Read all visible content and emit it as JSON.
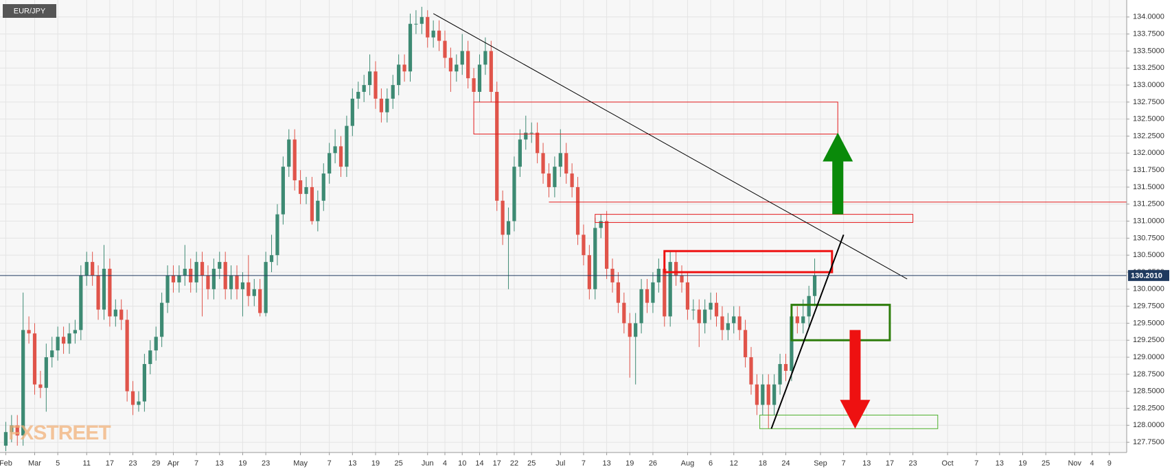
{
  "chart_data": {
    "type": "candlestick",
    "title": "EUR/JPY",
    "watermark": "FXSTREET",
    "up_color": "#3d8a73",
    "down_color": "#e0544a",
    "grid": true,
    "x": [
      0,
      1,
      2,
      3,
      4,
      5,
      6,
      7,
      8,
      9,
      10,
      11,
      12,
      13,
      14,
      15,
      16,
      17,
      18,
      19,
      20,
      21,
      22,
      23,
      24,
      25,
      26,
      27,
      28,
      29,
      30,
      31,
      32,
      33,
      34,
      35,
      36,
      37,
      38,
      39,
      40,
      41,
      42,
      43,
      44,
      45,
      46,
      47,
      48,
      49,
      50,
      51,
      52,
      53,
      54,
      55,
      56,
      57,
      58,
      59,
      60,
      61,
      62,
      63,
      64,
      65,
      66,
      67,
      68,
      69,
      70,
      71,
      72,
      73,
      74,
      75,
      76,
      77,
      78,
      79,
      80,
      81,
      82,
      83,
      84,
      85,
      86,
      87,
      88,
      89,
      90,
      91,
      92,
      93,
      94,
      95,
      96,
      97,
      98,
      99,
      100,
      101,
      102,
      103,
      104,
      105,
      106,
      107,
      108,
      109,
      110,
      111,
      112,
      113,
      114,
      115,
      116,
      117,
      118,
      119,
      120,
      121,
      122,
      123,
      124,
      125,
      126,
      127,
      128,
      129,
      130,
      131,
      132,
      133,
      134,
      135,
      136,
      137,
      138,
      139,
      140
    ],
    "open": [
      127.7,
      127.9,
      128.0,
      127.85,
      129.4,
      129.35,
      128.6,
      128.55,
      129.0,
      129.1,
      129.3,
      129.2,
      129.35,
      129.4,
      130.2,
      130.4,
      130.2,
      129.7,
      130.3,
      129.6,
      129.7,
      129.55,
      128.5,
      128.3,
      128.35,
      128.9,
      129.1,
      129.3,
      129.8,
      130.2,
      130.1,
      130.2,
      130.3,
      130.1,
      130.4,
      130.2,
      130.0,
      130.3,
      130.4,
      130.0,
      130.2,
      130.0,
      130.1,
      129.9,
      130.0,
      129.65,
      130.4,
      130.5,
      131.1,
      131.8,
      132.2,
      131.6,
      131.4,
      131.5,
      131.0,
      131.3,
      131.7,
      132.0,
      132.1,
      131.8,
      132.4,
      132.8,
      132.9,
      133.0,
      133.2,
      132.8,
      132.6,
      132.8,
      133.0,
      133.3,
      133.2,
      133.9,
      133.9,
      134.0,
      133.7,
      133.8,
      133.65,
      133.4,
      133.2,
      133.3,
      133.5,
      133.1,
      132.9,
      133.3,
      133.5,
      132.9,
      131.3,
      130.8,
      131.0,
      131.8,
      132.2,
      132.3,
      132.3,
      132.0,
      131.7,
      131.5,
      131.8,
      132.0,
      131.7,
      131.5,
      130.8,
      130.5,
      130.0,
      130.9,
      131.0,
      130.3,
      130.1,
      129.8,
      129.5,
      129.3,
      129.5,
      130.0,
      129.8,
      130.1,
      130.3,
      129.6,
      130.4,
      130.2,
      130.1,
      129.7,
      129.7,
      129.5,
      129.7,
      129.8,
      129.6,
      129.4,
      129.5,
      129.6,
      129.4,
      129.0,
      128.6,
      128.3,
      128.6,
      128.3,
      128.6,
      128.9,
      128.8,
      129.6,
      129.5,
      129.6,
      129.9
    ],
    "high": [
      128.05,
      128.15,
      128.15,
      129.95,
      129.6,
      129.5,
      128.8,
      129.2,
      129.3,
      129.45,
      129.45,
      129.5,
      129.55,
      130.35,
      130.55,
      130.55,
      130.35,
      130.65,
      130.45,
      129.85,
      129.85,
      129.7,
      128.65,
      128.5,
      129.05,
      129.25,
      129.45,
      129.95,
      130.35,
      130.35,
      130.35,
      130.65,
      130.45,
      130.55,
      130.55,
      130.35,
      130.45,
      130.55,
      130.55,
      130.35,
      130.35,
      130.25,
      130.5,
      130.15,
      130.15,
      130.55,
      130.8,
      131.25,
      131.95,
      132.35,
      132.35,
      131.75,
      131.65,
      131.65,
      131.45,
      131.85,
      132.15,
      132.35,
      132.25,
      132.55,
      132.95,
      133.05,
      133.15,
      133.45,
      133.35,
      132.95,
      132.95,
      133.15,
      133.45,
      133.45,
      134.05,
      134.1,
      134.15,
      134.1,
      133.95,
      133.95,
      133.8,
      133.55,
      133.45,
      133.75,
      133.65,
      133.25,
      133.45,
      133.7,
      133.65,
      133.05,
      131.45,
      131.2,
      131.95,
      132.35,
      132.55,
      132.45,
      132.45,
      132.15,
      131.85,
      131.95,
      132.35,
      132.15,
      131.85,
      131.65,
      130.95,
      130.65,
      131.05,
      131.1,
      131.15,
      130.45,
      130.25,
      129.95,
      129.65,
      129.65,
      130.15,
      130.15,
      130.25,
      130.45,
      130.45,
      130.55,
      130.55,
      130.35,
      130.25,
      129.85,
      129.85,
      129.85,
      129.95,
      129.95,
      129.75,
      129.65,
      129.75,
      129.75,
      129.55,
      129.15,
      128.75,
      128.75,
      128.75,
      128.75,
      129.05,
      129.05,
      129.75,
      129.75,
      129.85,
      130.05,
      130.45
    ],
    "low": [
      127.62,
      127.75,
      127.7,
      127.7,
      129.2,
      128.45,
      128.4,
      128.2,
      128.85,
      128.95,
      129.05,
      129.05,
      129.2,
      129.25,
      130.05,
      130.05,
      129.55,
      129.55,
      129.45,
      129.45,
      129.4,
      128.35,
      128.15,
      128.2,
      128.2,
      128.75,
      128.95,
      129.15,
      129.65,
      129.95,
      129.95,
      130.05,
      129.95,
      129.95,
      129.6,
      129.85,
      129.85,
      130.15,
      129.85,
      129.85,
      129.85,
      129.6,
      129.75,
      129.75,
      129.6,
      129.6,
      130.25,
      130.35,
      130.95,
      131.65,
      131.45,
      131.25,
      131.25,
      130.95,
      130.85,
      131.15,
      131.55,
      131.85,
      131.65,
      131.65,
      132.25,
      132.65,
      132.75,
      132.85,
      132.65,
      132.45,
      132.45,
      132.65,
      132.85,
      133.05,
      133.05,
      133.75,
      133.75,
      133.55,
      133.55,
      133.5,
      133.25,
      132.9,
      133.05,
      133.15,
      132.95,
      132.75,
      132.75,
      133.15,
      132.75,
      131.15,
      130.65,
      130.0,
      130.85,
      131.65,
      132.05,
      132.15,
      131.85,
      131.55,
      131.35,
      131.35,
      131.65,
      131.55,
      131.35,
      130.65,
      130.35,
      129.85,
      129.85,
      130.75,
      130.15,
      129.95,
      129.65,
      129.35,
      128.7,
      128.6,
      129.35,
      129.65,
      129.65,
      129.95,
      129.45,
      129.45,
      130.05,
      129.95,
      129.55,
      129.55,
      129.15,
      129.35,
      129.55,
      129.45,
      129.25,
      129.25,
      129.35,
      129.25,
      128.85,
      128.45,
      128.15,
      128.15,
      127.95,
      128.15,
      128.45,
      128.65,
      128.65,
      129.35,
      129.35,
      129.45,
      129.75
    ],
    "close": [
      127.9,
      128.0,
      127.85,
      129.4,
      129.35,
      128.6,
      128.55,
      129.0,
      129.1,
      129.3,
      129.2,
      129.35,
      129.4,
      130.2,
      130.4,
      130.2,
      129.7,
      130.3,
      129.6,
      129.7,
      129.55,
      128.5,
      128.3,
      128.35,
      128.9,
      129.1,
      129.3,
      129.8,
      130.2,
      130.1,
      130.2,
      130.3,
      130.1,
      130.4,
      130.2,
      130.0,
      130.3,
      130.4,
      130.0,
      130.2,
      130.0,
      130.1,
      129.9,
      130.0,
      129.65,
      130.4,
      130.5,
      131.1,
      131.8,
      132.2,
      131.6,
      131.4,
      131.5,
      131.0,
      131.3,
      131.7,
      132.0,
      132.1,
      131.8,
      132.4,
      132.8,
      132.9,
      133.0,
      133.2,
      132.8,
      132.6,
      132.8,
      133.0,
      133.3,
      133.2,
      133.9,
      133.9,
      134.0,
      133.7,
      133.8,
      133.65,
      133.4,
      133.2,
      133.3,
      133.5,
      133.1,
      132.9,
      133.3,
      133.5,
      132.9,
      131.3,
      130.8,
      131.0,
      131.8,
      132.2,
      132.3,
      132.3,
      132.0,
      131.7,
      131.5,
      131.8,
      132.0,
      131.7,
      131.5,
      130.8,
      130.5,
      130.0,
      130.9,
      131.0,
      130.3,
      130.1,
      129.8,
      129.5,
      129.3,
      129.5,
      130.0,
      129.8,
      130.1,
      130.3,
      129.6,
      130.4,
      130.2,
      130.1,
      129.7,
      129.7,
      129.5,
      129.7,
      129.8,
      129.6,
      129.4,
      129.5,
      129.6,
      129.4,
      129.0,
      128.6,
      128.3,
      128.6,
      128.3,
      128.6,
      128.9,
      128.8,
      129.6,
      129.5,
      129.6,
      129.9,
      130.2
    ],
    "xlim": [
      -1,
      194
    ],
    "ylim": [
      127.6,
      134.25
    ],
    "yticks": [
      {
        "value": 127.75,
        "label": "127.7500"
      },
      {
        "value": 128.0,
        "label": "128.0000"
      },
      {
        "value": 128.25,
        "label": "128.2500"
      },
      {
        "value": 128.5,
        "label": "128.5000"
      },
      {
        "value": 128.75,
        "label": "128.7500"
      },
      {
        "value": 129.0,
        "label": "129.0000"
      },
      {
        "value": 129.25,
        "label": "129.2500"
      },
      {
        "value": 129.5,
        "label": "129.5000"
      },
      {
        "value": 129.75,
        "label": "129.7500"
      },
      {
        "value": 130.0,
        "label": "130.0000"
      },
      {
        "value": 130.25,
        "label": "130.2500"
      },
      {
        "value": 130.5,
        "label": "130.5000"
      },
      {
        "value": 130.75,
        "label": "130.7500"
      },
      {
        "value": 131.0,
        "label": "131.0000"
      },
      {
        "value": 131.25,
        "label": "131.2500"
      },
      {
        "value": 131.5,
        "label": "131.5000"
      },
      {
        "value": 131.75,
        "label": "131.7500"
      },
      {
        "value": 132.0,
        "label": "132.0000"
      },
      {
        "value": 132.25,
        "label": "132.2500"
      },
      {
        "value": 132.5,
        "label": "132.5000"
      },
      {
        "value": 132.75,
        "label": "132.7500"
      },
      {
        "value": 133.0,
        "label": "133.0000"
      },
      {
        "value": 133.25,
        "label": "133.2500"
      },
      {
        "value": 133.5,
        "label": "133.5000"
      },
      {
        "value": 133.75,
        "label": "133.7500"
      },
      {
        "value": 134.0,
        "label": "134.0000"
      }
    ],
    "xticks": [
      {
        "value": 0,
        "label": "Feb"
      },
      {
        "value": 5,
        "label": "Mar"
      },
      {
        "value": 9,
        "label": "5"
      },
      {
        "value": 14,
        "label": "11"
      },
      {
        "value": 18,
        "label": "17"
      },
      {
        "value": 22,
        "label": "23"
      },
      {
        "value": 26,
        "label": "29"
      },
      {
        "value": 29,
        "label": "Apr"
      },
      {
        "value": 33,
        "label": "7"
      },
      {
        "value": 37,
        "label": "13"
      },
      {
        "value": 41,
        "label": "19"
      },
      {
        "value": 45,
        "label": "23"
      },
      {
        "value": 51,
        "label": "May"
      },
      {
        "value": 56,
        "label": "7"
      },
      {
        "value": 60,
        "label": "13"
      },
      {
        "value": 64,
        "label": "19"
      },
      {
        "value": 68,
        "label": "25"
      },
      {
        "value": 73,
        "label": "Jun"
      },
      {
        "value": 76,
        "label": "4"
      },
      {
        "value": 79,
        "label": "10"
      },
      {
        "value": 82,
        "label": "14"
      },
      {
        "value": 85,
        "label": "17"
      },
      {
        "value": 88,
        "label": "22"
      },
      {
        "value": 91,
        "label": "25"
      },
      {
        "value": 96,
        "label": "Jul"
      },
      {
        "value": 100,
        "label": "7"
      },
      {
        "value": 104,
        "label": "13"
      },
      {
        "value": 108,
        "label": "19"
      },
      {
        "value": 112,
        "label": "26"
      },
      {
        "value": 118,
        "label": "Aug"
      },
      {
        "value": 122,
        "label": "6"
      },
      {
        "value": 126,
        "label": "12"
      },
      {
        "value": 131,
        "label": "18"
      },
      {
        "value": 135,
        "label": "24"
      },
      {
        "value": 141,
        "label": "Sep"
      },
      {
        "value": 145,
        "label": "7"
      },
      {
        "value": 149,
        "label": "13"
      },
      {
        "value": 153,
        "label": "17"
      },
      {
        "value": 157,
        "label": "23"
      },
      {
        "value": 163,
        "label": "Oct"
      },
      {
        "value": 168,
        "label": "7"
      },
      {
        "value": 172,
        "label": "13"
      },
      {
        "value": 176,
        "label": "19"
      },
      {
        "value": 180,
        "label": "25"
      },
      {
        "value": 185,
        "label": "Nov"
      },
      {
        "value": 188,
        "label": "4"
      },
      {
        "value": 191,
        "label": "9"
      }
    ],
    "last_price": {
      "value": 130.201,
      "label": "130.2010"
    },
    "last_price_color": "#1f3a5f",
    "annotations": [
      {
        "type": "box",
        "x": [
          81,
          144
        ],
        "y": [
          132.28,
          132.75
        ],
        "color": "#e31a1c",
        "width": 1
      },
      {
        "type": "box",
        "x": [
          102,
          157
        ],
        "y": [
          130.98,
          131.1
        ],
        "color": "#e31a1c",
        "width": 1
      },
      {
        "type": "line",
        "x": [
          94,
          194
        ],
        "y": [
          131.28,
          131.28
        ],
        "color": "#e31a1c",
        "width": 1
      },
      {
        "type": "box",
        "x": [
          114,
          143
        ],
        "y": [
          130.25,
          130.56
        ],
        "color": "#ee1111",
        "width": 3
      },
      {
        "type": "box",
        "x": [
          136,
          153
        ],
        "y": [
          129.25,
          129.77
        ],
        "color": "#2e7d0c",
        "width": 3
      },
      {
        "type": "box",
        "x": [
          130.5,
          161.3
        ],
        "y": [
          127.95,
          128.15
        ],
        "color": "#4caf2a",
        "width": 1
      },
      {
        "type": "line",
        "x": [
          74,
          156
        ],
        "y": [
          134.05,
          130.15
        ],
        "color": "#000000",
        "width": 1
      },
      {
        "type": "line",
        "x": [
          132.5,
          145
        ],
        "y": [
          127.95,
          130.8
        ],
        "color": "#000000",
        "width": 2
      },
      {
        "type": "arrow",
        "x": [
          144,
          144
        ],
        "y": [
          131.1,
          132.3
        ],
        "color": "#0a8a0a",
        "width": 1
      },
      {
        "type": "arrow",
        "x": [
          147,
          147
        ],
        "y": [
          129.4,
          127.95
        ],
        "color": "#ee1111",
        "width": 1
      }
    ]
  }
}
